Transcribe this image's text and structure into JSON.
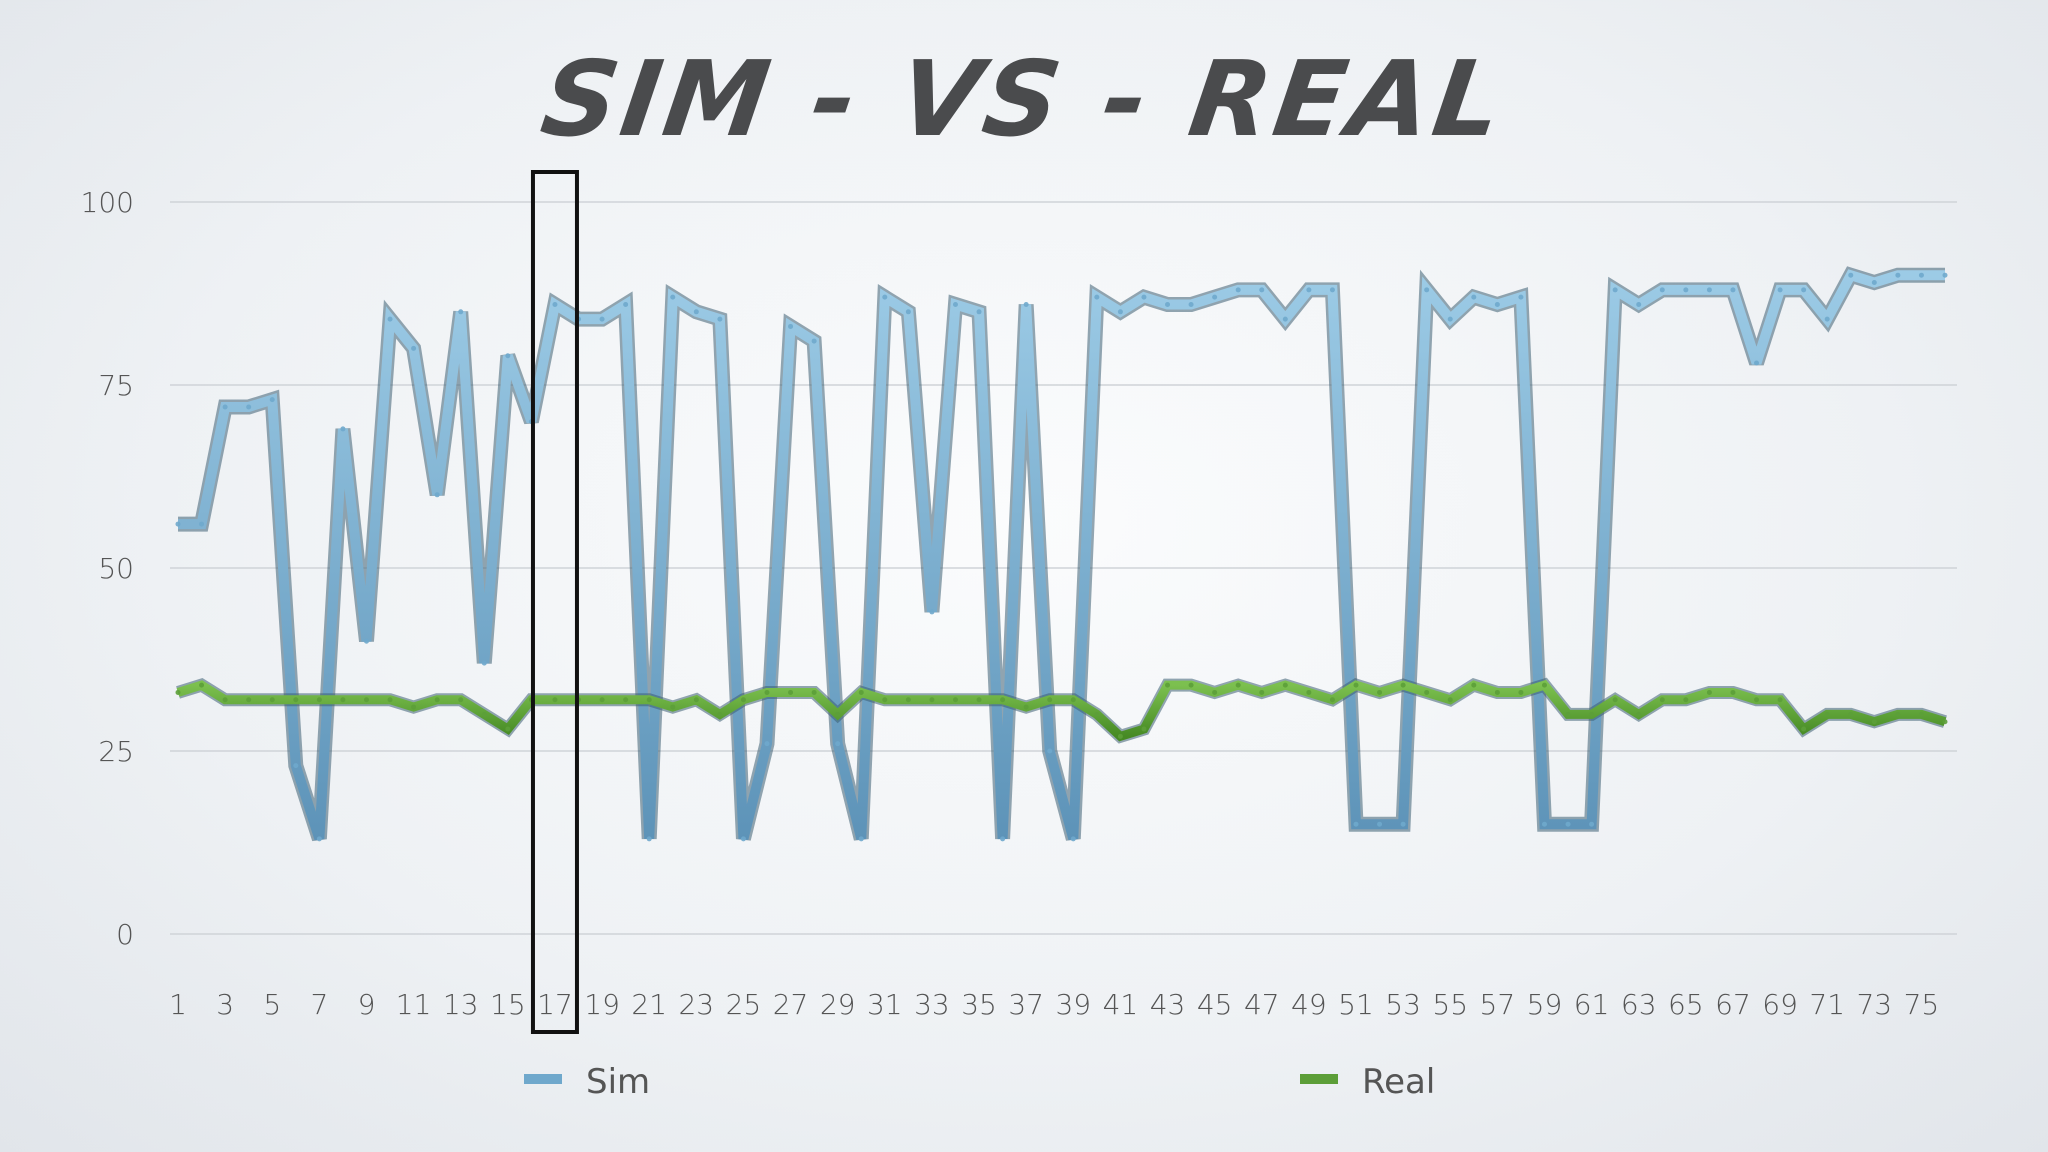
{
  "chart_data": {
    "type": "line",
    "title": "SIM - VS - REAL",
    "xlabel": "",
    "ylabel": "",
    "ylim": [
      0,
      100
    ],
    "yticks": [
      0,
      25,
      50,
      75,
      100
    ],
    "grid": true,
    "legend_position": "bottom",
    "x": [
      1,
      2,
      3,
      4,
      5,
      6,
      7,
      8,
      9,
      10,
      11,
      12,
      13,
      14,
      15,
      16,
      17,
      18,
      19,
      20,
      21,
      22,
      23,
      24,
      25,
      26,
      27,
      28,
      29,
      30,
      31,
      32,
      33,
      34,
      35,
      36,
      37,
      38,
      39,
      40,
      41,
      42,
      43,
      44,
      45,
      46,
      47,
      48,
      49,
      50,
      51,
      52,
      53,
      54,
      55,
      56,
      57,
      58,
      59,
      60,
      61,
      62,
      63,
      64,
      65,
      66,
      67,
      68,
      69,
      70,
      71,
      72,
      73,
      74,
      75,
      76
    ],
    "x_tick_labels": [
      "1",
      "3",
      "5",
      "7",
      "9",
      "11",
      "13",
      "15",
      "17",
      "19",
      "21",
      "23",
      "25",
      "27",
      "29",
      "31",
      "33",
      "35",
      "37",
      "39",
      "41",
      "43",
      "45",
      "47",
      "49",
      "51",
      "53",
      "55",
      "57",
      "59",
      "61",
      "63",
      "65",
      "67",
      "69",
      "71",
      "73",
      "75"
    ],
    "highlight_x": 17,
    "series": [
      {
        "name": "Sim",
        "color": "#6fa8cc",
        "values": [
          56,
          56,
          72,
          72,
          73,
          23,
          13,
          69,
          40,
          84,
          80,
          60,
          85,
          37,
          79,
          70,
          86,
          84,
          84,
          86,
          13,
          87,
          85,
          84,
          13,
          26,
          83,
          81,
          26,
          13,
          87,
          85,
          44,
          86,
          85,
          13,
          86,
          25,
          13,
          87,
          85,
          87,
          86,
          86,
          87,
          88,
          88,
          84,
          88,
          88,
          15,
          15,
          15,
          88,
          84,
          87,
          86,
          87,
          15,
          15,
          15,
          88,
          86,
          88,
          88,
          88,
          88,
          78,
          88,
          88,
          84,
          90,
          89,
          90,
          90,
          90
        ]
      },
      {
        "name": "Real",
        "color": "#5c9e38",
        "values": [
          33,
          34,
          32,
          32,
          32,
          32,
          32,
          32,
          32,
          32,
          31,
          32,
          32,
          30,
          28,
          32,
          32,
          32,
          32,
          32,
          32,
          31,
          32,
          30,
          32,
          33,
          33,
          33,
          30,
          33,
          32,
          32,
          32,
          32,
          32,
          32,
          31,
          32,
          32,
          30,
          27,
          28,
          34,
          34,
          33,
          34,
          33,
          34,
          33,
          32,
          34,
          33,
          34,
          33,
          32,
          34,
          33,
          33,
          34,
          30,
          30,
          32,
          30,
          32,
          32,
          33,
          33,
          32,
          32,
          28,
          30,
          30,
          29,
          30,
          30,
          29
        ]
      }
    ]
  }
}
